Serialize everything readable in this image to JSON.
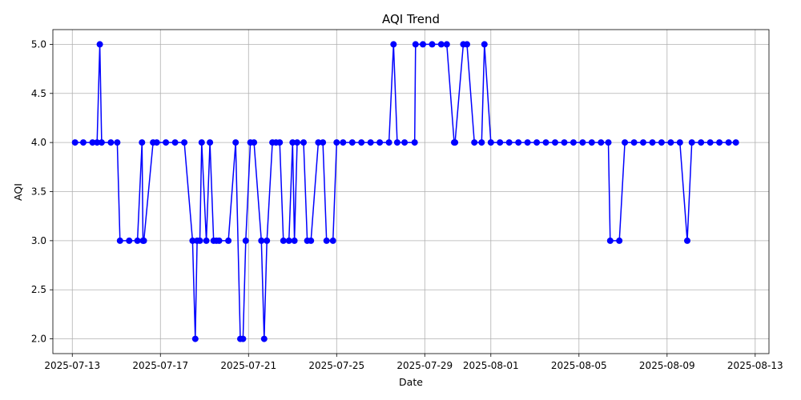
{
  "chart_data": {
    "type": "line",
    "title": "AQI Trend",
    "xlabel": "Date",
    "ylabel": "AQI",
    "x_axis_type": "date",
    "xlim": [
      "2025-07-12T02:50",
      "2025-08-13T15:00"
    ],
    "ylim": [
      1.85,
      5.15
    ],
    "x_ticks": [
      "2025-07-13",
      "2025-07-17",
      "2025-07-21",
      "2025-07-25",
      "2025-07-29",
      "2025-08-01",
      "2025-08-05",
      "2025-08-09",
      "2025-08-13"
    ],
    "y_ticks": [
      2.0,
      2.5,
      3.0,
      3.5,
      4.0,
      4.5,
      5.0
    ],
    "y_tick_labels": [
      "2.0",
      "2.5",
      "3.0",
      "3.5",
      "4.0",
      "4.5",
      "5.0"
    ],
    "grid": true,
    "legend": "none",
    "series_color": "#0000ff",
    "marker": "circle",
    "series": [
      {
        "x": [
          "2025-07-13T03:00",
          "2025-07-13T12:00",
          "2025-07-13T22:00",
          "2025-07-14T03:00",
          "2025-07-14T06:00",
          "2025-07-14T08:00",
          "2025-07-14T18:00",
          "2025-07-15T01:00",
          "2025-07-15T04:00",
          "2025-07-15T14:00",
          "2025-07-15T23:00",
          "2025-07-16T04:00",
          "2025-07-16T05:00",
          "2025-07-16T06:00",
          "2025-07-16T16:00",
          "2025-07-16T20:00",
          "2025-07-17T06:00",
          "2025-07-17T16:00",
          "2025-07-18T02:00",
          "2025-07-18T11:00",
          "2025-07-18T14:00",
          "2025-07-18T16:00",
          "2025-07-18T19:00",
          "2025-07-18T21:00",
          "2025-07-19T02:00",
          "2025-07-19T06:00",
          "2025-07-19T10:00",
          "2025-07-19T13:00",
          "2025-07-19T16:00",
          "2025-07-20T02:00",
          "2025-07-20T10:00",
          "2025-07-20T15:00",
          "2025-07-20T18:00",
          "2025-07-20T21:00",
          "2025-07-21T02:00",
          "2025-07-21T06:00",
          "2025-07-21T14:00",
          "2025-07-21T17:00",
          "2025-07-21T20:00",
          "2025-07-22T02:00",
          "2025-07-22T06:00",
          "2025-07-22T10:00",
          "2025-07-22T14:00",
          "2025-07-22T20:00",
          "2025-07-23T00:00",
          "2025-07-23T02:00",
          "2025-07-23T05:00",
          "2025-07-23T12:00",
          "2025-07-23T16:00",
          "2025-07-23T20:00",
          "2025-07-24T04:00",
          "2025-07-24T09:00",
          "2025-07-24T13:00",
          "2025-07-24T20:00",
          "2025-07-25T00:00",
          "2025-07-25T07:00",
          "2025-07-25T17:00",
          "2025-07-26T03:00",
          "2025-07-26T13:00",
          "2025-07-26T23:00",
          "2025-07-27T09:00",
          "2025-07-27T14:00",
          "2025-07-27T18:00",
          "2025-07-28T02:00",
          "2025-07-28T13:00",
          "2025-07-28T14:00",
          "2025-07-28T22:00",
          "2025-07-29T08:00",
          "2025-07-29T18:00",
          "2025-07-30T00:00",
          "2025-07-30T08:00",
          "2025-07-30T09:00",
          "2025-07-30T18:00",
          "2025-07-30T22:00",
          "2025-07-31T06:00",
          "2025-07-31T14:00",
          "2025-07-31T17:00",
          "2025-08-01T00:00",
          "2025-08-01T10:00",
          "2025-08-01T20:00",
          "2025-08-02T06:00",
          "2025-08-02T16:00",
          "2025-08-03T02:00",
          "2025-08-03T12:00",
          "2025-08-03T22:00",
          "2025-08-04T08:00",
          "2025-08-04T18:00",
          "2025-08-05T04:00",
          "2025-08-05T14:00",
          "2025-08-06T00:00",
          "2025-08-06T08:00",
          "2025-08-06T10:00",
          "2025-08-06T20:00",
          "2025-08-07T02:00",
          "2025-08-07T12:00",
          "2025-08-07T22:00",
          "2025-08-08T08:00",
          "2025-08-08T18:00",
          "2025-08-09T04:00",
          "2025-08-09T14:00",
          "2025-08-09T22:00",
          "2025-08-10T03:00",
          "2025-08-10T13:00",
          "2025-08-10T23:00",
          "2025-08-11T09:00",
          "2025-08-11T19:00",
          "2025-08-12T03:00"
        ],
        "y": [
          4,
          4,
          4,
          4,
          5,
          4,
          4,
          4,
          3,
          3,
          3,
          4,
          3,
          3,
          4,
          4,
          4,
          4,
          4,
          3,
          2,
          3,
          3,
          4,
          3,
          4,
          3,
          3,
          3,
          3,
          4,
          2,
          2,
          3,
          4,
          4,
          3,
          2,
          3,
          4,
          4,
          4,
          3,
          3,
          4,
          3,
          4,
          4,
          3,
          3,
          4,
          4,
          3,
          3,
          4,
          4,
          4,
          4,
          4,
          4,
          4,
          5,
          4,
          4,
          4,
          5,
          5,
          5,
          5,
          5,
          4,
          4,
          5,
          5,
          4,
          4,
          5,
          4,
          4,
          4,
          4,
          4,
          4,
          4,
          4,
          4,
          4,
          4,
          4,
          4,
          4,
          3,
          3,
          4,
          4,
          4,
          4,
          4,
          4,
          4,
          3,
          4,
          4,
          4,
          4,
          4,
          4
        ]
      }
    ]
  }
}
